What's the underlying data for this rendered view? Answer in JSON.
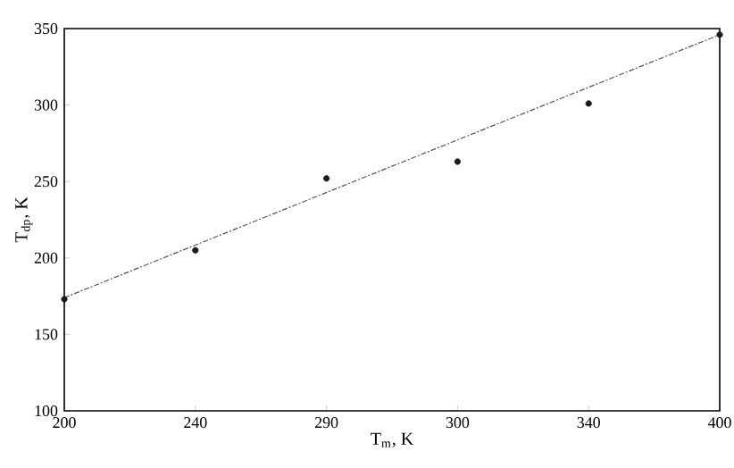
{
  "chart_data": {
    "type": "scatter",
    "xlabel": "T$_{m}$, K",
    "ylabel": "T$_{dp}$, K",
    "categories": [
      "200",
      "240",
      "290",
      "300",
      "340",
      "400"
    ],
    "series": [
      {
        "color": "#1a1a1a",
        "marker": "circle",
        "values": [
          173,
          205,
          252,
          263,
          301,
          346
        ]
      },
      {
        "type": "line",
        "color": "#555555",
        "line_style": "dashed",
        "marker": "none",
        "values": [
          174,
          null,
          null,
          null,
          null,
          346
        ]
      }
    ],
    "ylim": [
      100,
      350
    ],
    "yticks": [
      100,
      150,
      200,
      250,
      300,
      350
    ],
    "grid": false
  }
}
